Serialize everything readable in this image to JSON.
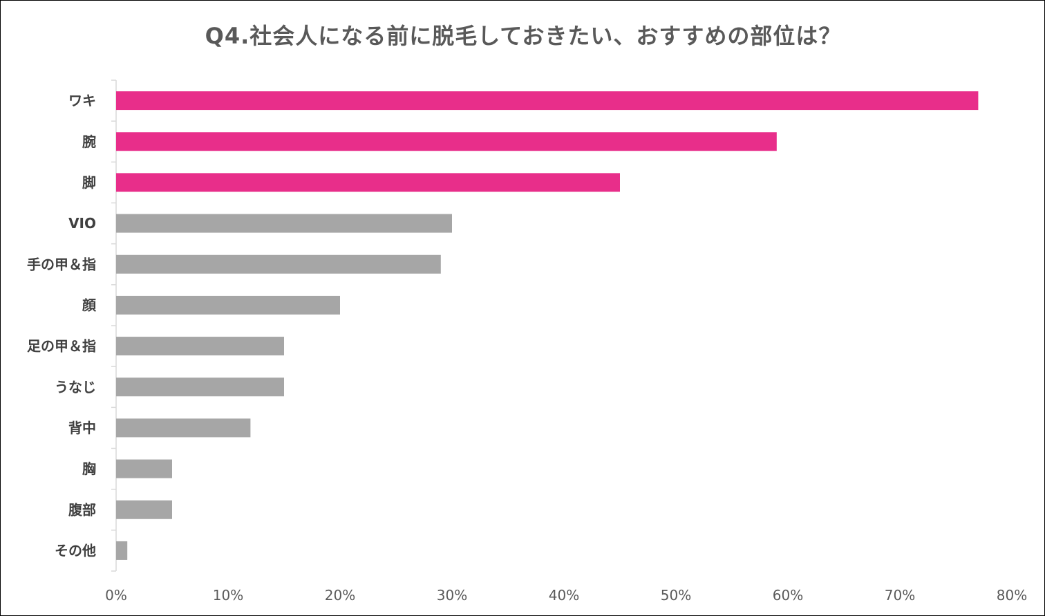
{
  "chart_data": {
    "type": "bar",
    "orientation": "horizontal",
    "title": "Q4.社会人になる前に脱毛しておきたい、おすすめの部位は？",
    "categories": [
      "ワキ",
      "腕",
      "脚",
      "VIO",
      "手の甲＆指",
      "顔",
      "足の甲＆指",
      "うなじ",
      "背中",
      "胸",
      "腹部",
      "その他"
    ],
    "values": [
      77,
      59,
      45,
      30,
      29,
      20,
      15,
      15,
      12,
      5,
      5,
      1
    ],
    "unit": "%",
    "xlim": [
      0,
      80
    ],
    "x_ticks": [
      "0%",
      "10%",
      "20%",
      "30%",
      "40%",
      "50%",
      "60%",
      "70%",
      "80%"
    ],
    "highlight_count": 3,
    "colors": {
      "highlight": "#E82E8A",
      "default": "#A6A6A6",
      "axis": "#D9D9D9"
    },
    "grid": false
  }
}
